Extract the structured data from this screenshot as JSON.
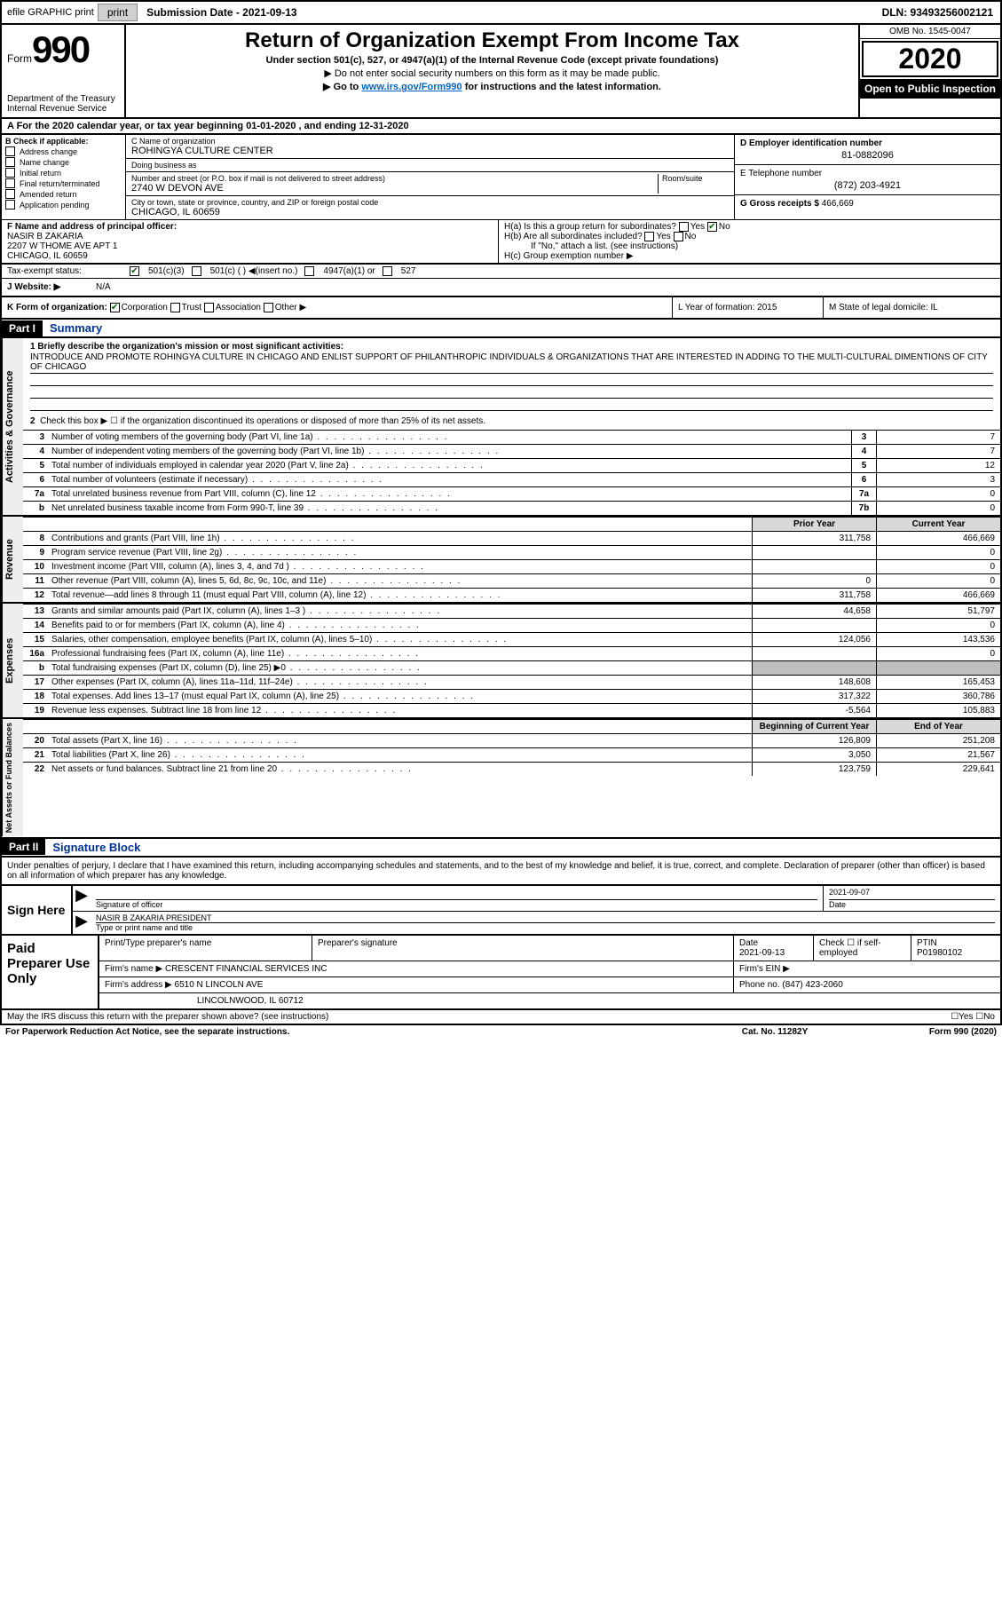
{
  "topbar": {
    "efile": "efile GRAPHIC print",
    "submission_label": "Submission Date - 2021-09-13",
    "dln": "DLN: 93493256002121"
  },
  "header": {
    "form_word": "Form",
    "form_num": "990",
    "dept": "Department of the Treasury\nInternal Revenue Service",
    "title": "Return of Organization Exempt From Income Tax",
    "sub1": "Under section 501(c), 527, or 4947(a)(1) of the Internal Revenue Code (except private foundations)",
    "sub2": "▶ Do not enter social security numbers on this form as it may be made public.",
    "sub3_pre": "▶ Go to ",
    "sub3_link": "www.irs.gov/Form990",
    "sub3_post": " for instructions and the latest information.",
    "omb": "OMB No. 1545-0047",
    "year": "2020",
    "open": "Open to Public Inspection"
  },
  "line_a": "A For the 2020 calendar year, or tax year beginning 01-01-2020    , and ending 12-31-2020",
  "col_b": {
    "hdr": "B Check if applicable:",
    "items": [
      "Address change",
      "Name change",
      "Initial return",
      "Final return/terminated",
      "Amended return",
      "Application pending"
    ]
  },
  "col_c": {
    "name_lbl": "C Name of organization",
    "name": "ROHINGYA CULTURE CENTER",
    "dba_lbl": "Doing business as",
    "dba": "",
    "addr_lbl": "Number and street (or P.O. box if mail is not delivered to street address)",
    "room_lbl": "Room/suite",
    "addr": "2740 W DEVON AVE",
    "city_lbl": "City or town, state or province, country, and ZIP or foreign postal code",
    "city": "CHICAGO, IL  60659"
  },
  "col_d": {
    "lbl": "D Employer identification number",
    "val": "81-0882096"
  },
  "col_e": {
    "lbl": "E Telephone number",
    "val": "(872) 203-4921"
  },
  "col_g": {
    "lbl": "G Gross receipts $",
    "val": "466,669"
  },
  "col_f": {
    "lbl": "F  Name and address of principal officer:",
    "name": "NASIR B ZAKARIA",
    "addr1": "2207 W THOME AVE APT 1",
    "addr2": "CHICAGO, IL  60659"
  },
  "col_h": {
    "ha": "H(a)  Is this a group return for subordinates?",
    "ha_no": "No",
    "hb": "H(b)  Are all subordinates included?",
    "hb_note": "If \"No,\" attach a list. (see instructions)",
    "hc": "H(c)  Group exemption number ▶"
  },
  "tax_status": {
    "lbl": "Tax-exempt status:",
    "c1": "501(c)(3)",
    "c2": "501(c) (  ) ◀(insert no.)",
    "c3": "4947(a)(1) or",
    "c4": "527"
  },
  "website": {
    "lbl": "J   Website: ▶",
    "val": "N/A"
  },
  "row_k": {
    "k": "K Form of organization:",
    "k_opts": [
      "Corporation",
      "Trust",
      "Association",
      "Other ▶"
    ],
    "l": "L Year of formation: 2015",
    "m": "M State of legal domicile: IL"
  },
  "parts": {
    "p1": "Part I",
    "p1t": "Summary",
    "p2": "Part II",
    "p2t": "Signature Block"
  },
  "summary": {
    "q1": "1  Briefly describe the organization's mission or most significant activities:",
    "mission": "INTRODUCE AND PROMOTE ROHINGYA CULTURE IN CHICAGO AND ENLIST SUPPORT OF PHILANTHROPIC INDIVIDUALS & ORGANIZATIONS THAT ARE INTERESTED IN ADDING TO THE MULTI-CULTURAL DIMENTIONS OF CITY OF CHICAGO",
    "q2": "Check this box ▶ ☐ if the organization discontinued its operations or disposed of more than 25% of its net assets.",
    "rows_gov": [
      {
        "n": "3",
        "lbl": "Number of voting members of the governing body (Part VI, line 1a)",
        "box": "3",
        "v": "7"
      },
      {
        "n": "4",
        "lbl": "Number of independent voting members of the governing body (Part VI, line 1b)",
        "box": "4",
        "v": "7"
      },
      {
        "n": "5",
        "lbl": "Total number of individuals employed in calendar year 2020 (Part V, line 2a)",
        "box": "5",
        "v": "12"
      },
      {
        "n": "6",
        "lbl": "Total number of volunteers (estimate if necessary)",
        "box": "6",
        "v": "3"
      },
      {
        "n": "7a",
        "lbl": "Total unrelated business revenue from Part VIII, column (C), line 12",
        "box": "7a",
        "v": "0"
      },
      {
        "n": "b",
        "lbl": "Net unrelated business taxable income from Form 990-T, line 39",
        "box": "7b",
        "v": "0"
      }
    ],
    "col_hdr_prior": "Prior Year",
    "col_hdr_curr": "Current Year",
    "rows_rev": [
      {
        "n": "8",
        "lbl": "Contributions and grants (Part VIII, line 1h)",
        "p": "311,758",
        "c": "466,669"
      },
      {
        "n": "9",
        "lbl": "Program service revenue (Part VIII, line 2g)",
        "p": "",
        "c": "0"
      },
      {
        "n": "10",
        "lbl": "Investment income (Part VIII, column (A), lines 3, 4, and 7d )",
        "p": "",
        "c": "0"
      },
      {
        "n": "11",
        "lbl": "Other revenue (Part VIII, column (A), lines 5, 6d, 8c, 9c, 10c, and 11e)",
        "p": "0",
        "c": "0"
      },
      {
        "n": "12",
        "lbl": "Total revenue—add lines 8 through 11 (must equal Part VIII, column (A), line 12)",
        "p": "311,758",
        "c": "466,669"
      }
    ],
    "rows_exp": [
      {
        "n": "13",
        "lbl": "Grants and similar amounts paid (Part IX, column (A), lines 1–3 )",
        "p": "44,658",
        "c": "51,797"
      },
      {
        "n": "14",
        "lbl": "Benefits paid to or for members (Part IX, column (A), line 4)",
        "p": "",
        "c": "0"
      },
      {
        "n": "15",
        "lbl": "Salaries, other compensation, employee benefits (Part IX, column (A), lines 5–10)",
        "p": "124,056",
        "c": "143,536"
      },
      {
        "n": "16a",
        "lbl": "Professional fundraising fees (Part IX, column (A), line 11e)",
        "p": "",
        "c": "0"
      },
      {
        "n": "b",
        "lbl": "Total fundraising expenses (Part IX, column (D), line 25) ▶0",
        "p": "",
        "c": "",
        "grey": true
      },
      {
        "n": "17",
        "lbl": "Other expenses (Part IX, column (A), lines 11a–11d, 11f–24e)",
        "p": "148,608",
        "c": "165,453"
      },
      {
        "n": "18",
        "lbl": "Total expenses. Add lines 13–17 (must equal Part IX, column (A), line 25)",
        "p": "317,322",
        "c": "360,786"
      },
      {
        "n": "19",
        "lbl": "Revenue less expenses. Subtract line 18 from line 12",
        "p": "-5,564",
        "c": "105,883"
      }
    ],
    "col_hdr_begin": "Beginning of Current Year",
    "col_hdr_end": "End of Year",
    "rows_net": [
      {
        "n": "20",
        "lbl": "Total assets (Part X, line 16)",
        "p": "126,809",
        "c": "251,208"
      },
      {
        "n": "21",
        "lbl": "Total liabilities (Part X, line 26)",
        "p": "3,050",
        "c": "21,567"
      },
      {
        "n": "22",
        "lbl": "Net assets or fund balances. Subtract line 21 from line 20",
        "p": "123,759",
        "c": "229,641"
      }
    ]
  },
  "vtabs": {
    "gov": "Activities & Governance",
    "rev": "Revenue",
    "exp": "Expenses",
    "net": "Net Assets or Fund Balances"
  },
  "sig": {
    "intro": "Under penalties of perjury, I declare that I have examined this return, including accompanying schedules and statements, and to the best of my knowledge and belief, it is true, correct, and complete. Declaration of preparer (other than officer) is based on all information of which preparer has any knowledge.",
    "sign_here": "Sign Here",
    "sig_officer": "Signature of officer",
    "date": "Date",
    "date_val": "2021-09-07",
    "name_title": "NASIR B ZAKARIA  PRESIDENT",
    "name_lbl": "Type or print name and title"
  },
  "prep": {
    "hdr": "Paid Preparer Use Only",
    "r1": {
      "a": "Print/Type preparer's name",
      "b": "Preparer's signature",
      "c": "Date",
      "c_val": "2021-09-13",
      "d": "Check ☐ if self-employed",
      "e": "PTIN",
      "e_val": "P01980102"
    },
    "r2": {
      "a": "Firm's name    ▶",
      "a_val": "CRESCENT FINANCIAL SERVICES INC",
      "b": "Firm's EIN ▶"
    },
    "r3": {
      "a": "Firm's address ▶",
      "a_val": "6510 N LINCOLN AVE",
      "b": "Phone no. (847) 423-2060"
    },
    "r4": {
      "a": "",
      "a_val": "LINCOLNWOOD, IL  60712"
    }
  },
  "footer": {
    "discuss": "May the IRS discuss this return with the preparer shown above? (see instructions)",
    "yesno": "☐Yes  ☐No",
    "pra": "For Paperwork Reduction Act Notice, see the separate instructions.",
    "cat": "Cat. No. 11282Y",
    "form": "Form 990 (2020)"
  }
}
